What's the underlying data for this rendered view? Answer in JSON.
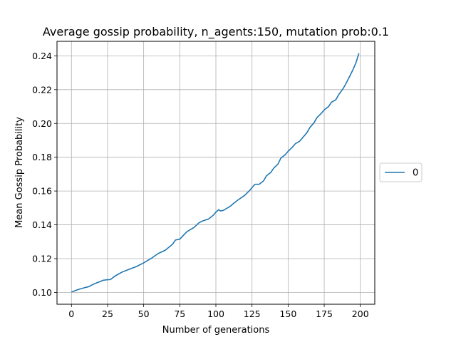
{
  "chart_data": {
    "type": "line",
    "title": "Average gossip probability, n_agents:150, mutation prob:0.1",
    "xlabel": "Number of generations",
    "ylabel": "Mean Gossip Probability",
    "xlim": [
      -10,
      210
    ],
    "ylim": [
      0.093,
      0.2486
    ],
    "x_ticks": [
      0,
      25,
      50,
      75,
      100,
      125,
      150,
      175,
      200
    ],
    "y_ticks": [
      0.1,
      0.12,
      0.14,
      0.16,
      0.18,
      0.2,
      0.22,
      0.24
    ],
    "y_tick_labels": [
      "0.10",
      "0.12",
      "0.14",
      "0.16",
      "0.18",
      "0.20",
      "0.22",
      "0.24"
    ],
    "grid": true,
    "legend_position": "center-right-outside",
    "series": [
      {
        "name": "0",
        "color": "#1f77b4",
        "x": [
          0,
          5,
          10,
          12,
          15,
          20,
          22,
          25,
          27,
          30,
          35,
          40,
          45,
          50,
          55,
          60,
          65,
          70,
          72,
          75,
          80,
          85,
          88,
          90,
          95,
          98,
          100,
          102,
          103,
          105,
          110,
          112,
          115,
          120,
          123,
          125,
          127,
          130,
          133,
          135,
          138,
          140,
          143,
          145,
          148,
          150,
          153,
          155,
          158,
          160,
          163,
          165,
          168,
          170,
          173,
          175,
          178,
          180,
          183,
          185,
          188,
          190,
          193,
          195,
          197,
          199
        ],
        "values": [
          0.1002,
          0.1018,
          0.103,
          0.1034,
          0.1048,
          0.1065,
          0.1072,
          0.1075,
          0.1076,
          0.1096,
          0.112,
          0.1137,
          0.1153,
          0.1175,
          0.12,
          0.123,
          0.125,
          0.1285,
          0.131,
          0.1315,
          0.136,
          0.1385,
          0.141,
          0.142,
          0.1435,
          0.1455,
          0.1475,
          0.149,
          0.1482,
          0.1485,
          0.151,
          0.1525,
          0.1545,
          0.1575,
          0.16,
          0.162,
          0.164,
          0.164,
          0.166,
          0.169,
          0.171,
          0.1735,
          0.176,
          0.1795,
          0.1815,
          0.1835,
          0.186,
          0.188,
          0.1895,
          0.1915,
          0.1945,
          0.1975,
          0.2005,
          0.2035,
          0.206,
          0.208,
          0.21,
          0.2125,
          0.214,
          0.217,
          0.2205,
          0.2235,
          0.2285,
          0.232,
          0.236,
          0.2415
        ]
      }
    ]
  }
}
